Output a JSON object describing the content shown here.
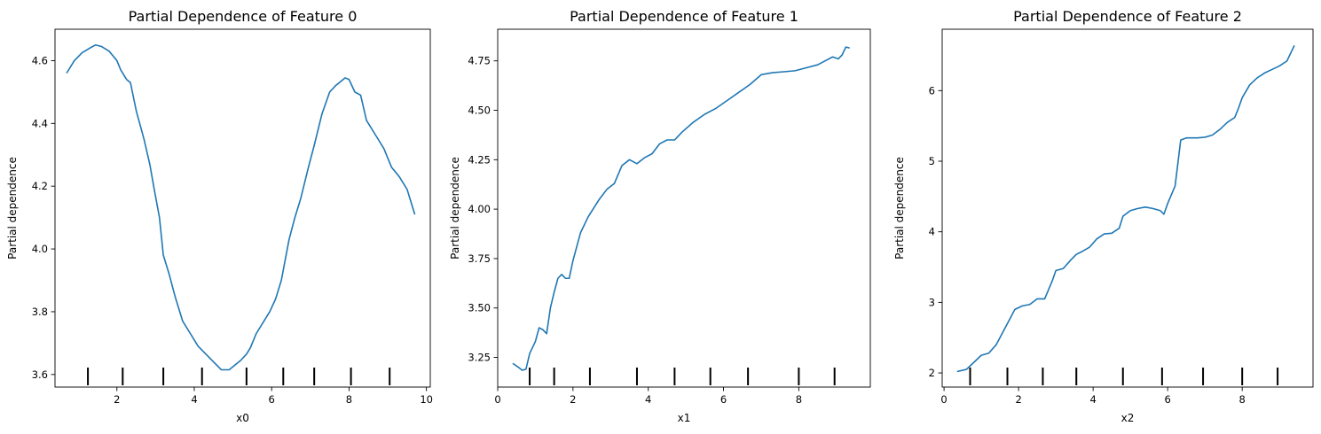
{
  "chart_data": [
    {
      "type": "line",
      "title": "Partial Dependence of Feature 0",
      "xlabel": "x0",
      "ylabel": "Partial dependence",
      "xlim": [
        0.4,
        10.1
      ],
      "ylim": [
        3.56,
        4.7
      ],
      "xticks": [
        2,
        4,
        6,
        8,
        10
      ],
      "yticks": [
        3.6,
        3.8,
        4.0,
        4.2,
        4.4,
        4.6
      ],
      "ytick_labels": [
        "3.6",
        "3.8",
        "4.0",
        "4.2",
        "4.4",
        "4.6"
      ],
      "rug": [
        1.25,
        2.15,
        3.2,
        4.2,
        5.35,
        6.3,
        7.1,
        8.05,
        9.05
      ],
      "series": [
        {
          "color": "#1f77b4",
          "x": [
            0.7,
            0.9,
            1.1,
            1.3,
            1.45,
            1.6,
            1.8,
            2.0,
            2.1,
            2.25,
            2.35,
            2.5,
            2.7,
            2.85,
            2.95,
            3.1,
            3.2,
            3.35,
            3.5,
            3.7,
            3.9,
            4.1,
            4.3,
            4.5,
            4.7,
            4.9,
            5.0,
            5.2,
            5.35,
            5.45,
            5.6,
            5.8,
            5.95,
            6.1,
            6.25,
            6.45,
            6.6,
            6.75,
            6.95,
            7.1,
            7.3,
            7.5,
            7.65,
            7.75,
            7.9,
            8.0,
            8.15,
            8.3,
            8.45,
            8.7,
            8.9,
            9.1,
            9.3,
            9.5,
            9.6,
            9.7
          ],
          "y": [
            4.56,
            4.6,
            4.625,
            4.64,
            4.65,
            4.645,
            4.63,
            4.6,
            4.57,
            4.54,
            4.53,
            4.44,
            4.35,
            4.27,
            4.2,
            4.1,
            3.98,
            3.92,
            3.85,
            3.77,
            3.73,
            3.69,
            3.665,
            3.64,
            3.615,
            3.615,
            3.625,
            3.645,
            3.665,
            3.685,
            3.73,
            3.77,
            3.8,
            3.84,
            3.9,
            4.03,
            4.1,
            4.16,
            4.26,
            4.33,
            4.43,
            4.5,
            4.52,
            4.53,
            4.545,
            4.54,
            4.5,
            4.49,
            4.41,
            4.36,
            4.32,
            4.26,
            4.23,
            4.19,
            4.15,
            4.11
          ]
        }
      ]
    },
    {
      "type": "line",
      "title": "Partial Dependence of Feature 1",
      "xlabel": "x1",
      "ylabel": "Partial dependence",
      "xlim": [
        0.0,
        9.9
      ],
      "ylim": [
        3.1,
        4.91
      ],
      "xticks": [
        0,
        2,
        4,
        6,
        8
      ],
      "yticks": [
        3.25,
        3.5,
        3.75,
        4.0,
        4.25,
        4.5,
        4.75
      ],
      "ytick_labels": [
        "3.25",
        "3.50",
        "3.75",
        "4.00",
        "4.25",
        "4.50",
        "4.75"
      ],
      "rug": [
        0.85,
        1.5,
        2.45,
        3.7,
        4.7,
        5.65,
        6.65,
        8.0,
        8.95
      ],
      "series": [
        {
          "color": "#1f77b4",
          "x": [
            0.4,
            0.55,
            0.65,
            0.75,
            0.85,
            1.0,
            1.1,
            1.2,
            1.3,
            1.4,
            1.5,
            1.6,
            1.7,
            1.8,
            1.9,
            2.0,
            2.2,
            2.4,
            2.5,
            2.7,
            2.9,
            3.1,
            3.3,
            3.5,
            3.7,
            3.9,
            4.1,
            4.3,
            4.5,
            4.7,
            4.9,
            5.2,
            5.5,
            5.8,
            6.1,
            6.4,
            6.7,
            7.0,
            7.3,
            7.6,
            7.9,
            8.2,
            8.5,
            8.7,
            8.9,
            9.05,
            9.15,
            9.25,
            9.35
          ],
          "y": [
            3.22,
            3.2,
            3.185,
            3.19,
            3.27,
            3.33,
            3.4,
            3.39,
            3.37,
            3.5,
            3.58,
            3.65,
            3.67,
            3.65,
            3.65,
            3.74,
            3.88,
            3.96,
            3.99,
            4.05,
            4.1,
            4.13,
            4.22,
            4.25,
            4.23,
            4.26,
            4.28,
            4.33,
            4.35,
            4.35,
            4.39,
            4.44,
            4.48,
            4.51,
            4.55,
            4.59,
            4.63,
            4.68,
            4.69,
            4.695,
            4.7,
            4.715,
            4.73,
            4.75,
            4.77,
            4.76,
            4.78,
            4.82,
            4.815
          ]
        }
      ]
    },
    {
      "type": "line",
      "title": "Partial Dependence of Feature 2",
      "xlabel": "x2",
      "ylabel": "Partial dependence",
      "xlim": [
        -0.05,
        9.9
      ],
      "ylim": [
        1.8,
        6.87
      ],
      "xticks": [
        0,
        2,
        4,
        6,
        8
      ],
      "yticks": [
        2,
        3,
        4,
        5,
        6
      ],
      "ytick_labels": [
        "2",
        "3",
        "4",
        "5",
        "6"
      ],
      "rug": [
        0.7,
        1.7,
        2.65,
        3.55,
        4.8,
        5.85,
        6.95,
        8.0,
        8.95
      ],
      "series": [
        {
          "color": "#1f77b4",
          "x": [
            0.35,
            0.6,
            0.8,
            1.0,
            1.2,
            1.4,
            1.6,
            1.8,
            1.9,
            2.1,
            2.3,
            2.5,
            2.7,
            2.9,
            3.0,
            3.2,
            3.4,
            3.55,
            3.7,
            3.9,
            4.1,
            4.3,
            4.5,
            4.7,
            4.8,
            5.0,
            5.2,
            5.4,
            5.6,
            5.8,
            5.9,
            6.0,
            6.2,
            6.35,
            6.5,
            6.8,
            7.0,
            7.2,
            7.4,
            7.6,
            7.8,
            7.9,
            8.0,
            8.2,
            8.4,
            8.6,
            8.8,
            9.0,
            9.2,
            9.4
          ],
          "y": [
            2.02,
            2.05,
            2.15,
            2.25,
            2.28,
            2.4,
            2.6,
            2.8,
            2.9,
            2.95,
            2.97,
            3.05,
            3.05,
            3.3,
            3.45,
            3.48,
            3.6,
            3.68,
            3.72,
            3.78,
            3.9,
            3.97,
            3.98,
            4.05,
            4.22,
            4.3,
            4.33,
            4.35,
            4.33,
            4.3,
            4.25,
            4.4,
            4.65,
            5.3,
            5.33,
            5.33,
            5.34,
            5.37,
            5.45,
            5.55,
            5.62,
            5.75,
            5.9,
            6.08,
            6.18,
            6.25,
            6.3,
            6.35,
            6.42,
            6.64
          ]
        }
      ]
    }
  ]
}
